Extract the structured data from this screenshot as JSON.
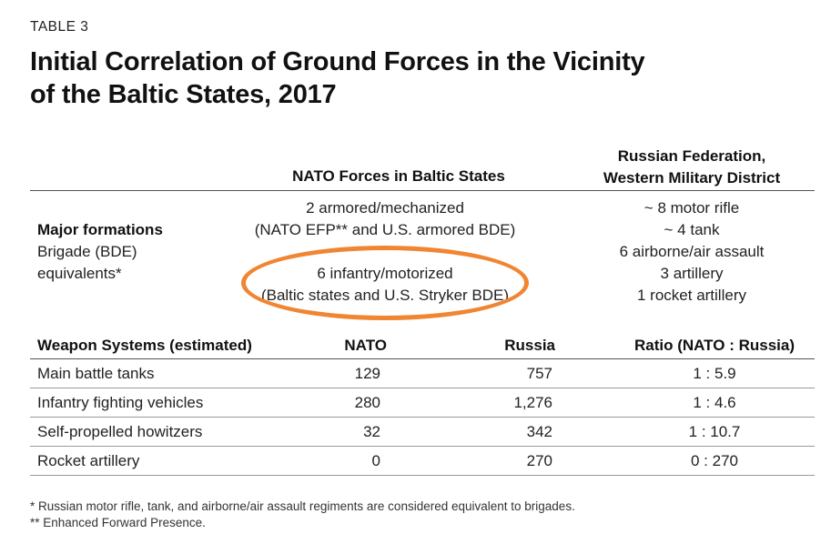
{
  "table_label": "TABLE 3",
  "title_line1": "Initial Correlation of Ground Forces in the Vicinity",
  "title_line2": "of the Baltic States, 2017",
  "forces_header": {
    "nato": "NATO Forces in Baltic States",
    "russia_line1": "Russian Federation,",
    "russia_line2": "Western Military District"
  },
  "formations": {
    "label_bold": "Major formations",
    "label_line2": "Brigade (BDE)",
    "label_line3": "equivalents*",
    "nato_lines": [
      "2 armored/mechanized",
      "(NATO EFP** and U.S. armored BDE)",
      "6 infantry/motorized",
      "(Baltic states and U.S. Stryker BDE)"
    ],
    "russia_lines": [
      "~ 8 motor rifle",
      "~ 4 tank",
      "6 airborne/air assault",
      "3 artillery",
      "1 rocket artillery"
    ]
  },
  "weapons_header": {
    "col1": "Weapon Systems (estimated)",
    "col2": "NATO",
    "col3": "Russia",
    "col4": "Ratio (NATO : Russia)"
  },
  "weapons_rows": [
    {
      "system": "Main battle tanks",
      "nato": "129",
      "russia": "757",
      "ratio": "1 : 5.9"
    },
    {
      "system": "Infantry fighting vehicles",
      "nato": "280",
      "russia": "1,276",
      "ratio": "1 : 4.6"
    },
    {
      "system": "Self-propelled howitzers",
      "nato": "32",
      "russia": "342",
      "ratio": "1 : 10.7"
    },
    {
      "system": "Rocket artillery",
      "nato": "0",
      "russia": "270",
      "ratio": "0 : 270"
    }
  ],
  "highlight_color": "#f08532",
  "footnotes": [
    "* Russian motor rifle, tank, and airborne/air assault regiments are considered equivalent to brigades.",
    "** Enhanced Forward Presence."
  ]
}
